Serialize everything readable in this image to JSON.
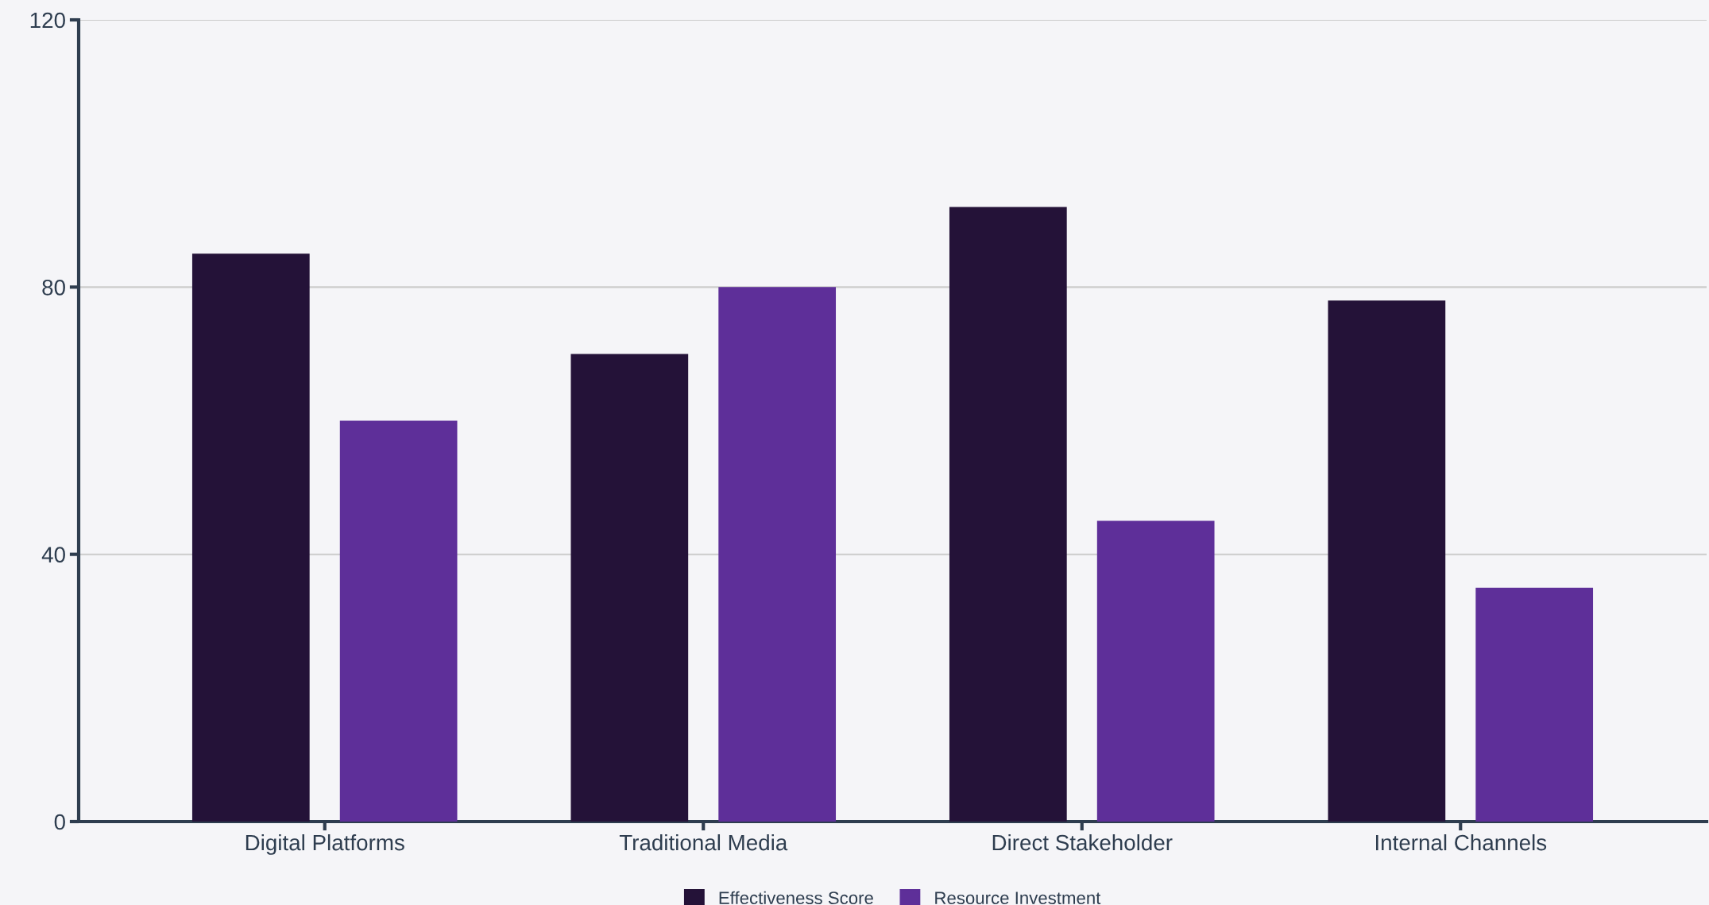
{
  "chart_data": {
    "type": "bar",
    "categories": [
      "Digital Platforms",
      "Traditional Media",
      "Direct Stakeholder",
      "Internal Channels"
    ],
    "series": [
      {
        "name": "Effectiveness Score",
        "color": "#241238",
        "values": [
          85,
          70,
          92,
          78
        ]
      },
      {
        "name": "Resource Investment",
        "color": "#5e2f99",
        "values": [
          60,
          80,
          45,
          35
        ]
      }
    ],
    "ylim": [
      0,
      120
    ],
    "yticks": [
      0,
      40,
      80,
      120
    ],
    "grid": "y",
    "legend": "bottom"
  }
}
